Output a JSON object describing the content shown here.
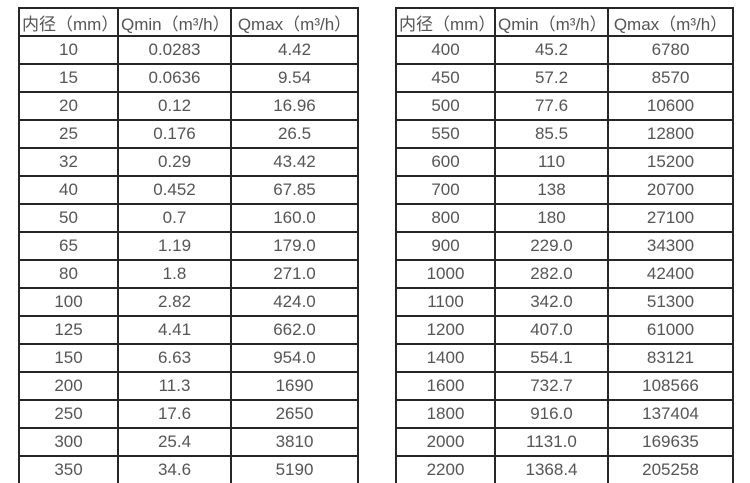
{
  "colors": {
    "background": "#ffffff",
    "border": "#262626",
    "text": "#555555"
  },
  "table_left": {
    "headers": {
      "diameter": "内径（mm）",
      "qmin": "Qmin（m³/h）",
      "qmax": "Qmax（m³/h）"
    },
    "rows": [
      [
        "10",
        "0.0283",
        "4.42"
      ],
      [
        "15",
        "0.0636",
        "9.54"
      ],
      [
        "20",
        "0.12",
        "16.96"
      ],
      [
        "25",
        "0.176",
        "26.5"
      ],
      [
        "32",
        "0.29",
        "43.42"
      ],
      [
        "40",
        "0.452",
        "67.85"
      ],
      [
        "50",
        "0.7",
        "160.0"
      ],
      [
        "65",
        "1.19",
        "179.0"
      ],
      [
        "80",
        "1.8",
        "271.0"
      ],
      [
        "100",
        "2.82",
        "424.0"
      ],
      [
        "125",
        "4.41",
        "662.0"
      ],
      [
        "150",
        "6.63",
        "954.0"
      ],
      [
        "200",
        "11.3",
        "1690"
      ],
      [
        "250",
        "17.6",
        "2650"
      ],
      [
        "300",
        "25.4",
        "3810"
      ],
      [
        "350",
        "34.6",
        "5190"
      ]
    ]
  },
  "table_right": {
    "headers": {
      "diameter": "内径（mm）",
      "qmin": "Qmin（m³/h）",
      "qmax": "Qmax（m³/h）"
    },
    "rows": [
      [
        "400",
        "45.2",
        "6780"
      ],
      [
        "450",
        "57.2",
        "8570"
      ],
      [
        "500",
        "77.6",
        "10600"
      ],
      [
        "550",
        "85.5",
        "12800"
      ],
      [
        "600",
        "110",
        "15200"
      ],
      [
        "700",
        "138",
        "20700"
      ],
      [
        "800",
        "180",
        "27100"
      ],
      [
        "900",
        "229.0",
        "34300"
      ],
      [
        "1000",
        "282.0",
        "42400"
      ],
      [
        "1100",
        "342.0",
        "51300"
      ],
      [
        "1200",
        "407.0",
        "61000"
      ],
      [
        "1400",
        "554.1",
        "83121"
      ],
      [
        "1600",
        "732.7",
        "108566"
      ],
      [
        "1800",
        "916.0",
        "137404"
      ],
      [
        "2000",
        "1131.0",
        "169635"
      ],
      [
        "2200",
        "1368.4",
        "205258"
      ]
    ]
  }
}
